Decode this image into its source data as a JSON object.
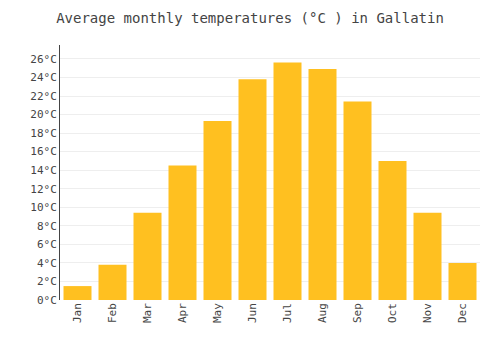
{
  "chart_data": {
    "type": "bar",
    "title": "Average monthly temperatures (°C ) in Gallatin",
    "categories": [
      "Jan",
      "Feb",
      "Mar",
      "Apr",
      "May",
      "Jun",
      "Jul",
      "Aug",
      "Sep",
      "Oct",
      "Nov",
      "Dec"
    ],
    "values": [
      1.5,
      3.8,
      9.4,
      14.5,
      19.3,
      23.8,
      25.6,
      24.9,
      21.4,
      15.0,
      9.4,
      4.0
    ],
    "color": "#FFC020",
    "ylim": [
      0,
      27.5
    ],
    "yticks": [
      {
        "value": 0,
        "label": "0°C"
      },
      {
        "value": 2,
        "label": "2°C"
      },
      {
        "value": 4,
        "label": "4°C"
      },
      {
        "value": 6,
        "label": "6°C"
      },
      {
        "value": 8,
        "label": "8°C"
      },
      {
        "value": 10,
        "label": "10°C"
      },
      {
        "value": 12,
        "label": "12°C"
      },
      {
        "value": 14,
        "label": "14°C"
      },
      {
        "value": 16,
        "label": "16°C"
      },
      {
        "value": 18,
        "label": "18°C"
      },
      {
        "value": 20,
        "label": "20°C"
      },
      {
        "value": 22,
        "label": "22°C"
      },
      {
        "value": 24,
        "label": "24°C"
      },
      {
        "value": 26,
        "label": "26°C"
      }
    ],
    "grid": true
  }
}
